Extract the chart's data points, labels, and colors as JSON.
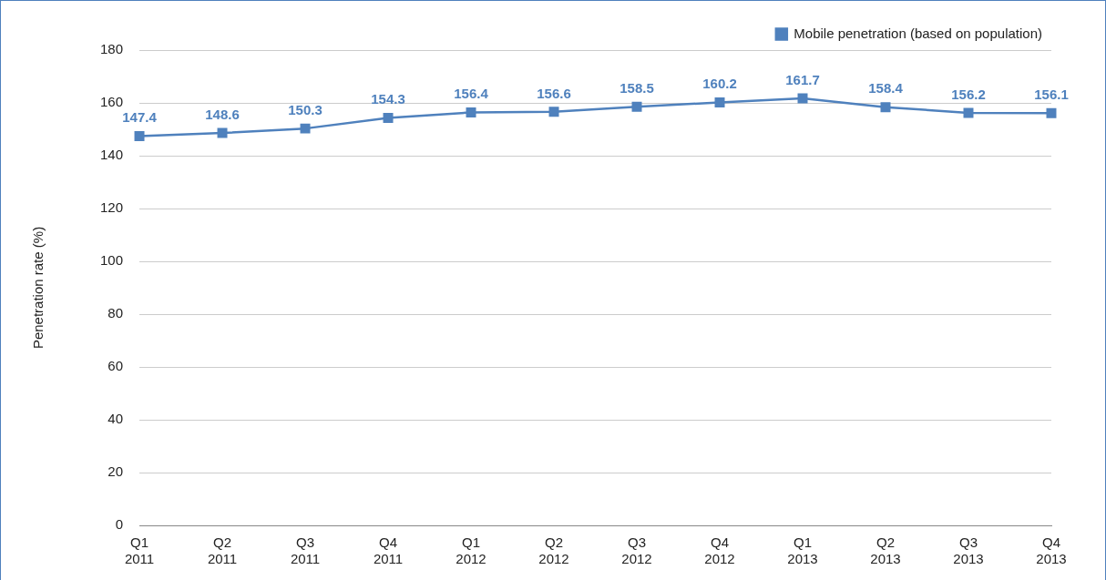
{
  "chart_data": {
    "type": "line",
    "ylabel": "Penetration rate (%)",
    "categories": [
      "Q1 2011",
      "Q2 2011",
      "Q3 2011",
      "Q4 2011",
      "Q1 2012",
      "Q2 2012",
      "Q3 2012",
      "Q4 2012",
      "Q1 2013",
      "Q2 2013",
      "Q3 2013",
      "Q4 2013"
    ],
    "series": [
      {
        "name": "Mobile penetration (based on population)",
        "color": "#4f81bd",
        "values": [
          147.4,
          148.6,
          150.3,
          154.3,
          156.4,
          156.6,
          158.5,
          160.2,
          161.7,
          158.4,
          156.2,
          156.1
        ]
      }
    ],
    "ylim": [
      0,
      180
    ],
    "yticks": [
      0,
      20,
      40,
      60,
      80,
      100,
      120,
      140,
      160,
      180
    ],
    "grid": "y",
    "legend": "top right",
    "marker": "square",
    "line_style": "solid",
    "data_labels": true
  }
}
